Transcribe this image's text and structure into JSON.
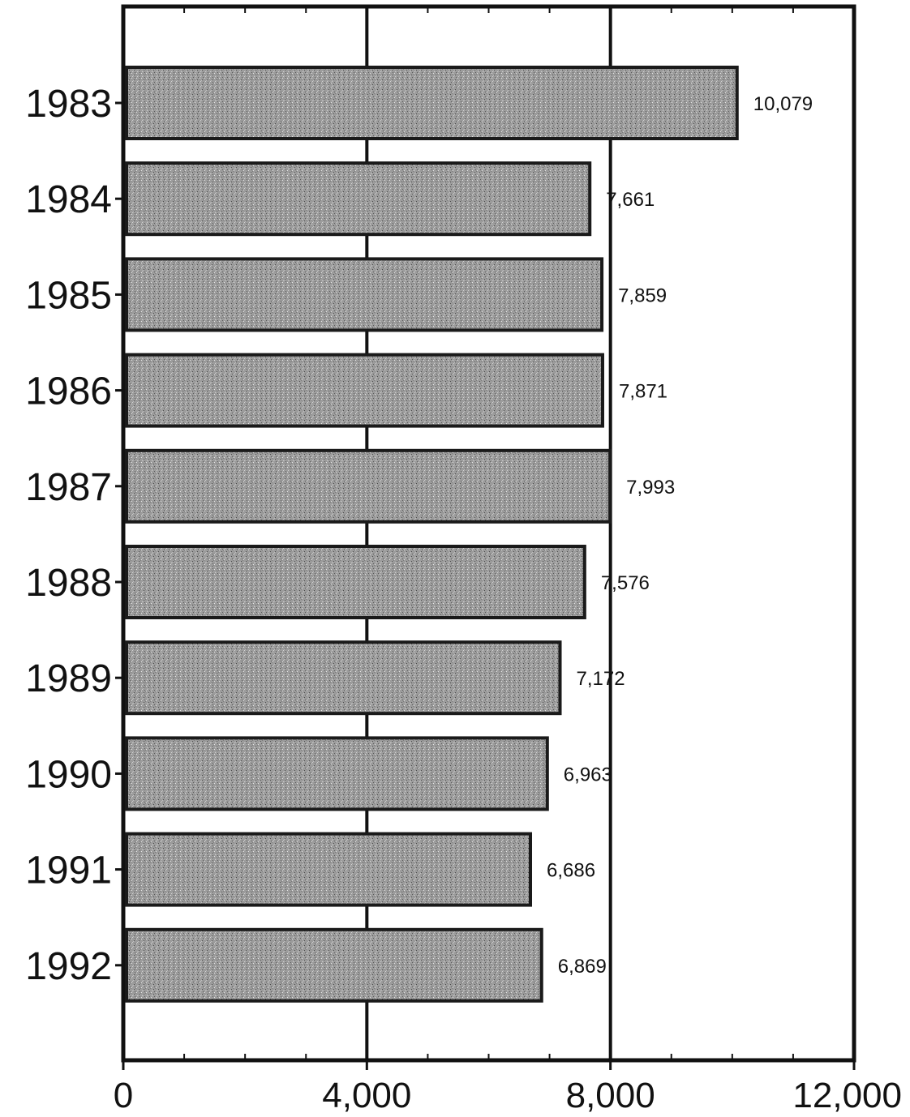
{
  "chart_data": {
    "type": "bar",
    "orientation": "horizontal",
    "categories": [
      "1983",
      "1984",
      "1985",
      "1986",
      "1987",
      "1988",
      "1989",
      "1990",
      "1991",
      "1992"
    ],
    "values": [
      10079,
      7661,
      7859,
      7871,
      7993,
      7576,
      7172,
      6963,
      6686,
      6869
    ],
    "value_labels": [
      "10,079",
      "7,661",
      "7,859",
      "7,871",
      "7,993",
      "7,576",
      "7,172",
      "6,963",
      "6,686",
      "6,869"
    ],
    "x_ticks": [
      0,
      4000,
      8000,
      12000
    ],
    "x_tick_labels": [
      "0",
      "4,000",
      "8,000",
      "12,000"
    ],
    "xlim": [
      0,
      12000
    ],
    "grid": "vertical lines at 4,000 and 8,000",
    "legend": "none",
    "title": "",
    "xlabel": "",
    "ylabel": "",
    "colors": {
      "bar_fill": "#9a9a9a",
      "bar_outline": "#1a1a1a",
      "axis": "#111111"
    }
  }
}
